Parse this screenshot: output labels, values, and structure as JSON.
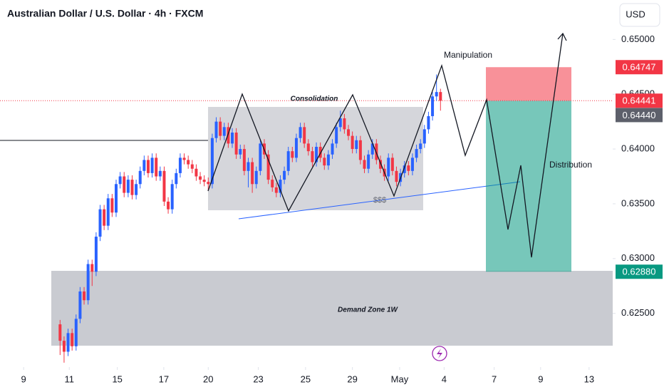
{
  "chart_data": {
    "type": "candlestick",
    "title": "Australian Dollar / U.S. Dollar · 4h · FXCM",
    "currency": "USD",
    "up_color": "#2962ff",
    "down_color": "#f23645",
    "open": [
      0.624,
      0.6225,
      0.6215,
      0.6232,
      0.622,
      0.6245,
      0.627,
      0.6262,
      0.6295,
      0.6288,
      0.632,
      0.6345,
      0.633,
      0.6355,
      0.6342,
      0.6368,
      0.6375,
      0.636,
      0.6372,
      0.6358,
      0.6368,
      0.638,
      0.639,
      0.6378,
      0.6392,
      0.6375,
      0.638,
      0.6352,
      0.6345,
      0.6368,
      0.6378,
      0.6392,
      0.639,
      0.6386,
      0.6382,
      0.6375,
      0.6372,
      0.637,
      0.6368,
      0.641,
      0.6425,
      0.6412,
      0.642,
      0.6405,
      0.6415,
      0.6395,
      0.64,
      0.638,
      0.6388,
      0.6368,
      0.638,
      0.6405,
      0.6395,
      0.6372,
      0.6365,
      0.636,
      0.6372,
      0.638,
      0.6398,
      0.6392,
      0.641,
      0.642,
      0.6405,
      0.6398,
      0.6388,
      0.6402,
      0.6392,
      0.6385,
      0.6395,
      0.6405,
      0.642,
      0.6428,
      0.6418,
      0.6412,
      0.64,
      0.6408,
      0.639,
      0.6382,
      0.6395,
      0.6405,
      0.639,
      0.6382,
      0.6375,
      0.6392,
      0.638,
      0.637,
      0.6378,
      0.6385,
      0.638,
      0.6392,
      0.64,
      0.6405,
      0.6418,
      0.643,
      0.6448,
      0.6452
    ],
    "high": [
      0.6244,
      0.6229,
      0.6236,
      0.6236,
      0.6249,
      0.6274,
      0.6274,
      0.6299,
      0.6299,
      0.6324,
      0.6349,
      0.6349,
      0.6359,
      0.6359,
      0.6372,
      0.6379,
      0.6379,
      0.6376,
      0.6376,
      0.6372,
      0.6384,
      0.6394,
      0.6394,
      0.6396,
      0.6396,
      0.6384,
      0.6384,
      0.6356,
      0.6372,
      0.6382,
      0.6396,
      0.6396,
      0.6394,
      0.639,
      0.6386,
      0.6379,
      0.6376,
      0.6374,
      0.6414,
      0.6429,
      0.6429,
      0.6424,
      0.6424,
      0.6419,
      0.6419,
      0.6404,
      0.6404,
      0.6392,
      0.6392,
      0.6384,
      0.6409,
      0.6409,
      0.6399,
      0.6376,
      0.6369,
      0.6376,
      0.6384,
      0.6402,
      0.6402,
      0.6414,
      0.6424,
      0.6424,
      0.6409,
      0.6402,
      0.6406,
      0.6406,
      0.6396,
      0.6399,
      0.6409,
      0.6424,
      0.6435,
      0.6432,
      0.6422,
      0.6416,
      0.6412,
      0.6412,
      0.6394,
      0.6399,
      0.6409,
      0.6409,
      0.6394,
      0.6386,
      0.6396,
      0.6396,
      0.6384,
      0.6382,
      0.6389,
      0.6389,
      0.6396,
      0.6404,
      0.6409,
      0.6422,
      0.6434,
      0.6452,
      0.6468,
      0.6455
    ],
    "low": [
      0.6212,
      0.6205,
      0.6211,
      0.6216,
      0.6216,
      0.6241,
      0.6258,
      0.6258,
      0.6275,
      0.6284,
      0.6316,
      0.6326,
      0.6326,
      0.6338,
      0.6338,
      0.6364,
      0.6356,
      0.6356,
      0.6354,
      0.6354,
      0.6364,
      0.6376,
      0.6374,
      0.6374,
      0.6371,
      0.6371,
      0.6348,
      0.6341,
      0.6341,
      0.6364,
      0.6374,
      0.6386,
      0.6382,
      0.6378,
      0.6371,
      0.6368,
      0.6366,
      0.6362,
      0.6364,
      0.6406,
      0.6408,
      0.6408,
      0.6401,
      0.6401,
      0.6391,
      0.6391,
      0.6376,
      0.6365,
      0.636,
      0.6364,
      0.6376,
      0.6391,
      0.6368,
      0.6361,
      0.6356,
      0.6356,
      0.6368,
      0.6376,
      0.6388,
      0.6388,
      0.6406,
      0.6401,
      0.6394,
      0.6384,
      0.6384,
      0.6388,
      0.6381,
      0.6381,
      0.6391,
      0.6401,
      0.6416,
      0.6414,
      0.6408,
      0.6396,
      0.6396,
      0.6386,
      0.6378,
      0.6378,
      0.6391,
      0.6386,
      0.6378,
      0.6371,
      0.6371,
      0.6376,
      0.6366,
      0.6366,
      0.6374,
      0.6376,
      0.6376,
      0.6388,
      0.6396,
      0.6401,
      0.6414,
      0.6426,
      0.6444,
      0.6435
    ],
    "close": [
      0.6225,
      0.6215,
      0.6232,
      0.622,
      0.6245,
      0.627,
      0.6262,
      0.6295,
      0.6288,
      0.632,
      0.6345,
      0.633,
      0.6355,
      0.6342,
      0.6368,
      0.6375,
      0.636,
      0.6372,
      0.6358,
      0.6368,
      0.638,
      0.639,
      0.6378,
      0.6392,
      0.6375,
      0.638,
      0.6352,
      0.6345,
      0.6368,
      0.6378,
      0.6392,
      0.639,
      0.6386,
      0.6382,
      0.6375,
      0.6372,
      0.637,
      0.6368,
      0.641,
      0.6425,
      0.6412,
      0.642,
      0.6405,
      0.6415,
      0.6395,
      0.64,
      0.638,
      0.6388,
      0.6368,
      0.638,
      0.6405,
      0.6395,
      0.6372,
      0.6365,
      0.636,
      0.6372,
      0.638,
      0.6398,
      0.6392,
      0.641,
      0.642,
      0.6405,
      0.6398,
      0.6388,
      0.6402,
      0.6392,
      0.6385,
      0.6395,
      0.6405,
      0.642,
      0.6428,
      0.6418,
      0.6412,
      0.64,
      0.6408,
      0.639,
      0.6382,
      0.6395,
      0.6405,
      0.639,
      0.6382,
      0.6375,
      0.6392,
      0.638,
      0.637,
      0.6378,
      0.6385,
      0.638,
      0.6392,
      0.64,
      0.6405,
      0.6418,
      0.643,
      0.6448,
      0.6452,
      0.6444
    ],
    "xlim": [
      -15,
      138
    ],
    "xticks": [
      {
        "value": -9.1,
        "label": "9"
      },
      {
        "value": 2.3,
        "label": "11"
      },
      {
        "value": 14.3,
        "label": "15"
      },
      {
        "value": 25.9,
        "label": "17"
      },
      {
        "value": 37,
        "label": "20"
      },
      {
        "value": 49.5,
        "label": "23"
      },
      {
        "value": 61.3,
        "label": "25"
      },
      {
        "value": 73,
        "label": "29"
      },
      {
        "value": 84.8,
        "label": "May"
      },
      {
        "value": 95.9,
        "label": "4"
      },
      {
        "value": 108.4,
        "label": "7"
      },
      {
        "value": 120,
        "label": "9"
      },
      {
        "value": 132.1,
        "label": "13"
      }
    ],
    "ylim": [
      0.6201,
      0.6536
    ],
    "yticks": [
      {
        "value": 0.625,
        "label": "0.62500"
      },
      {
        "value": 0.63,
        "label": "0.63000"
      },
      {
        "value": 0.635,
        "label": "0.63500"
      },
      {
        "value": 0.64,
        "label": "0.64000"
      },
      {
        "value": 0.645,
        "label": "0.64500"
      },
      {
        "value": 0.65,
        "label": "0.65000"
      }
    ],
    "price_labels": [
      0.64747,
      0.64441,
      {
        "value": 0.6444,
        "label": "0.64440"
      },
      {
        "value": 0.6288,
        "label": "0.62880"
      }
    ],
    "price_label_colors": [
      "#f23645",
      "#f23645",
      "#5d606b",
      "#089981"
    ],
    "annotations": [
      "Consolidation",
      "Manipulation",
      "Distribution",
      "$$$",
      "Demand Zone 1W"
    ]
  }
}
